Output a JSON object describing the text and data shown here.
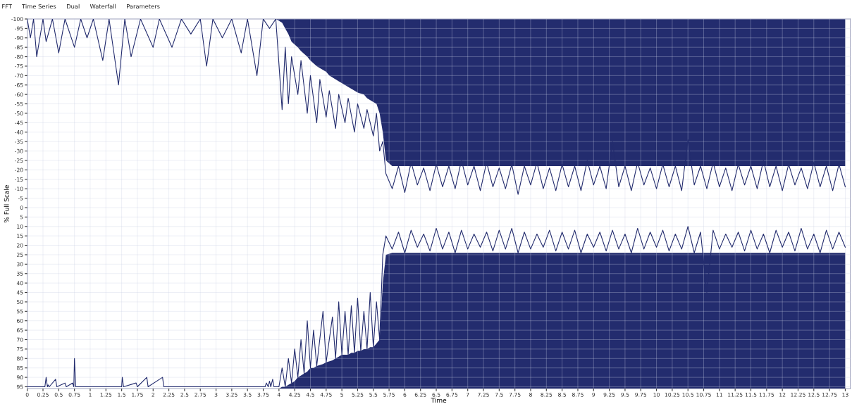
{
  "chart_data": {
    "type": "line",
    "xlabel": "Time",
    "ylabel": "% Full Scale",
    "annotations": [
      "FFT",
      "Time Series",
      "Dual",
      "Waterfall",
      "Parameters"
    ],
    "xlim": [
      0,
      13.08
    ],
    "ylim": [
      96,
      -100
    ],
    "xticks": [
      0,
      0.25,
      0.5,
      0.75,
      1,
      1.25,
      1.5,
      1.75,
      2,
      2.25,
      2.5,
      2.75,
      3,
      3.25,
      3.5,
      3.75,
      4,
      4.25,
      4.5,
      4.75,
      5,
      5.25,
      5.5,
      5.75,
      6,
      6.25,
      6.5,
      6.75,
      7,
      7.25,
      7.5,
      7.75,
      8,
      8.25,
      8.5,
      8.75,
      9,
      9.25,
      9.5,
      9.75,
      10,
      10.25,
      10.5,
      10.75,
      11,
      11.25,
      11.5,
      11.75,
      12,
      12.25,
      12.5,
      12.75,
      13
    ],
    "yticks": [
      -100,
      -95,
      -90,
      -85,
      -80,
      -75,
      -70,
      -65,
      -60,
      -55,
      -50,
      -45,
      -40,
      -35,
      -30,
      -25,
      -20,
      -15,
      -10,
      -5,
      0,
      5,
      10,
      15,
      20,
      25,
      30,
      35,
      40,
      45,
      50,
      55,
      60,
      65,
      70,
      75,
      80,
      85,
      90,
      95
    ],
    "grid": true,
    "marker": "none",
    "line_style": "solid",
    "series": [
      {
        "color": "#232c6e",
        "x": [
          0,
          0.05,
          0.1,
          0.15,
          0.25,
          0.3,
          0.4,
          0.5,
          0.6,
          0.75,
          0.85,
          0.95,
          1.05,
          1.2,
          1.3,
          1.45,
          1.55,
          1.65,
          1.8,
          2.0,
          2.1,
          2.3,
          2.45,
          2.6,
          2.75,
          2.85,
          2.95,
          3.1,
          3.25,
          3.4,
          3.5,
          3.65,
          3.75,
          3.85,
          3.95,
          4.05,
          4.1,
          4.15,
          4.2,
          4.3,
          4.35,
          4.45,
          4.5,
          4.6,
          4.65,
          4.75,
          4.8,
          4.9,
          4.95,
          5.05,
          5.1,
          5.2,
          5.25,
          5.35,
          5.4,
          5.5,
          5.55,
          5.6,
          5.65,
          5.7,
          5.8,
          5.9,
          6.0,
          6.1,
          6.2,
          6.3,
          6.4,
          6.5,
          6.6,
          6.7,
          6.8,
          6.9,
          7.0,
          7.1,
          7.2,
          7.3,
          7.4,
          7.5,
          7.6,
          7.7,
          7.8,
          7.9,
          8.0,
          8.1,
          8.2,
          8.3,
          8.4,
          8.5,
          8.6,
          8.7,
          8.8,
          8.9,
          9.0,
          9.1,
          9.2,
          9.3,
          9.4,
          9.5,
          9.6,
          9.7,
          9.8,
          9.9,
          10.0,
          10.1,
          10.2,
          10.3,
          10.4,
          10.5,
          10.6,
          10.7,
          10.8,
          10.9,
          11.0,
          11.1,
          11.2,
          11.3,
          11.4,
          11.5,
          11.6,
          11.7,
          11.8,
          11.9,
          12.0,
          12.1,
          12.2,
          12.3,
          12.4,
          12.5,
          12.6,
          12.7,
          12.8,
          12.9,
          13.0
        ],
        "values": [
          -100,
          -90,
          -100,
          -80,
          -100,
          -88,
          -100,
          -82,
          -100,
          -85,
          -100,
          -90,
          -100,
          -78,
          -100,
          -65,
          -100,
          -80,
          -100,
          -85,
          -100,
          -85,
          -100,
          -92,
          -100,
          -75,
          -100,
          -90,
          -100,
          -82,
          -100,
          -70,
          -100,
          -95,
          -100,
          -52,
          -85,
          -55,
          -80,
          -60,
          -78,
          -50,
          -70,
          -45,
          -68,
          -48,
          -62,
          -42,
          -60,
          -45,
          -58,
          -40,
          -55,
          -42,
          -52,
          -38,
          -50,
          -30,
          -35,
          -18,
          -10,
          -22,
          -8,
          -24,
          -12,
          -21,
          -9,
          -23,
          -11,
          -22,
          -10,
          -25,
          -12,
          -22,
          -9,
          -24,
          -11,
          -21,
          -10,
          -23,
          -7,
          -22,
          -12,
          -24,
          -10,
          -21,
          -9,
          -23,
          -11,
          -22,
          -9,
          -25,
          -12,
          -22,
          -10,
          -35,
          -11,
          -22,
          -9,
          -24,
          -12,
          -21,
          -10,
          -23,
          -11,
          -22,
          -9,
          -36,
          -12,
          -22,
          -10,
          -24,
          -11,
          -21,
          -9,
          -23,
          -12,
          -22,
          -10,
          -25,
          -11,
          -22,
          -9,
          -23,
          -12,
          -21,
          -10,
          -24,
          -11,
          -22,
          -9,
          -23,
          -11
        ],
        "lower": [
          -100,
          -100,
          -100,
          -100,
          -100,
          -100,
          -100,
          -100,
          -100,
          -100,
          -100,
          -100,
          -100,
          -100,
          -100,
          -100,
          -100,
          -100,
          -100,
          -100,
          -100,
          -100,
          -100,
          -100,
          -100,
          -100,
          -100,
          -100,
          -100,
          -100,
          -100,
          -100,
          -100,
          -100,
          -100,
          -100,
          -100,
          -100,
          -100,
          -100,
          -100,
          -100,
          -100,
          -100,
          -100,
          -100,
          -100,
          -100,
          -100,
          -100,
          -100,
          -100,
          -100,
          -100,
          -100,
          -100,
          -100,
          -100,
          -100,
          -100,
          -100,
          -100,
          -100,
          -100,
          -100,
          -100,
          -100,
          -100,
          -100,
          -100,
          -100,
          -100,
          -100,
          -100,
          -100,
          -100,
          -100,
          -100,
          -100,
          -100,
          -100,
          -100,
          -100,
          -100,
          -100,
          -100,
          -100,
          -100,
          -100,
          -100,
          -100,
          -100,
          -100,
          -100,
          -100,
          -100,
          -100,
          -100,
          -100,
          -100,
          -100,
          -100,
          -100,
          -100,
          -100,
          -100,
          -100,
          -100,
          -100,
          -100,
          -100,
          -100,
          -100,
          -100,
          -100,
          -100,
          -100,
          -100,
          -100,
          -100,
          -100,
          -100,
          -100,
          -100,
          -100,
          -100,
          -100,
          -100,
          -100,
          -100,
          -100,
          -100,
          -100
        ],
        "upper": [
          -100,
          -100,
          -100,
          -100,
          -100,
          -100,
          -100,
          -100,
          -100,
          -100,
          -100,
          -100,
          -100,
          -100,
          -100,
          -100,
          -100,
          -100,
          -100,
          -100,
          -100,
          -100,
          -100,
          -100,
          -100,
          -100,
          -100,
          -100,
          -100,
          -100,
          -100,
          -100,
          -100,
          -100,
          -100,
          -98,
          -95,
          -92,
          -88,
          -85,
          -83,
          -80,
          -78,
          -75,
          -74,
          -72,
          -70,
          -68,
          -67,
          -65,
          -64,
          -62,
          -61,
          -60,
          -58,
          -56,
          -55,
          -50,
          -40,
          -25,
          -22,
          -22,
          -22,
          -22,
          -22,
          -22,
          -22,
          -22,
          -22,
          -22,
          -22,
          -22,
          -22,
          -22,
          -22,
          -22,
          -22,
          -22,
          -22,
          -22,
          -22,
          -22,
          -22,
          -22,
          -22,
          -22,
          -22,
          -22,
          -22,
          -22,
          -22,
          -22,
          -22,
          -22,
          -22,
          -22,
          -22,
          -22,
          -22,
          -22,
          -22,
          -22,
          -22,
          -22,
          -22,
          -22,
          -22,
          -22,
          -22,
          -22,
          -22,
          -22,
          -22,
          -22,
          -22,
          -22,
          -22,
          -22,
          -22,
          -22,
          -22,
          -22,
          -22,
          -22,
          -22,
          -22,
          -22,
          -22,
          -22,
          -22,
          -22,
          -22,
          -22
        ]
      },
      {
        "color": "#232c6e",
        "x": [
          0,
          0.28,
          0.3,
          0.32,
          0.33,
          0.35,
          0.45,
          0.47,
          0.6,
          0.62,
          0.72,
          0.74,
          0.75,
          0.77,
          1.5,
          1.51,
          1.53,
          1.73,
          1.75,
          1.9,
          1.92,
          2.15,
          2.17,
          3.78,
          3.8,
          3.83,
          3.85,
          3.87,
          3.9,
          3.92,
          4.0,
          4.05,
          4.1,
          4.15,
          4.2,
          4.25,
          4.3,
          4.35,
          4.4,
          4.45,
          4.5,
          4.55,
          4.6,
          4.7,
          4.75,
          4.85,
          4.9,
          4.95,
          5.0,
          5.05,
          5.1,
          5.15,
          5.2,
          5.25,
          5.3,
          5.35,
          5.4,
          5.45,
          5.5,
          5.55,
          5.6,
          5.65,
          5.7,
          5.8,
          5.9,
          6.0,
          6.1,
          6.2,
          6.3,
          6.4,
          6.5,
          6.6,
          6.7,
          6.8,
          6.9,
          7.0,
          7.1,
          7.2,
          7.3,
          7.4,
          7.5,
          7.6,
          7.7,
          7.8,
          7.9,
          8.0,
          8.1,
          8.2,
          8.3,
          8.4,
          8.5,
          8.6,
          8.7,
          8.8,
          8.9,
          9.0,
          9.1,
          9.2,
          9.3,
          9.4,
          9.5,
          9.6,
          9.7,
          9.8,
          9.9,
          10.0,
          10.1,
          10.2,
          10.3,
          10.4,
          10.5,
          10.6,
          10.7,
          10.8,
          10.9,
          11.0,
          11.1,
          11.2,
          11.3,
          11.4,
          11.5,
          11.6,
          11.7,
          11.8,
          11.9,
          12.0,
          12.1,
          12.2,
          12.3,
          12.4,
          12.5,
          12.6,
          12.7,
          12.8,
          12.9,
          13.0
        ],
        "values": [
          95,
          95,
          90,
          95,
          94,
          95,
          91,
          95,
          93,
          95,
          93,
          95,
          80,
          95,
          95,
          90,
          95,
          93,
          95,
          90,
          95,
          90,
          95,
          95,
          93,
          95,
          92,
          95,
          91,
          95,
          95,
          85,
          95,
          80,
          93,
          75,
          90,
          70,
          88,
          60,
          85,
          65,
          84,
          55,
          82,
          58,
          80,
          50,
          78,
          55,
          78,
          52,
          77,
          48,
          76,
          55,
          75,
          45,
          74,
          50,
          70,
          25,
          15,
          22,
          13,
          24,
          12,
          21,
          14,
          23,
          11,
          22,
          13,
          24,
          12,
          22,
          14,
          21,
          13,
          23,
          12,
          22,
          11,
          24,
          13,
          22,
          14,
          21,
          12,
          23,
          13,
          22,
          12,
          24,
          14,
          21,
          13,
          23,
          12,
          22,
          14,
          24,
          11,
          22,
          13,
          21,
          12,
          23,
          14,
          22,
          10,
          24,
          13,
          45,
          12,
          22,
          14,
          21,
          13,
          23,
          12,
          22,
          14,
          24,
          12,
          21,
          13,
          23,
          11,
          22,
          14,
          24,
          12,
          22,
          13,
          21
        ],
        "lower": [
          96,
          96,
          96,
          96,
          96,
          96,
          96,
          96,
          96,
          96,
          96,
          96,
          96,
          96,
          96,
          96,
          96,
          96,
          96,
          96,
          96,
          96,
          96,
          96,
          96,
          96,
          96,
          96,
          96,
          96,
          96,
          95,
          95,
          94,
          93,
          92,
          90,
          89,
          88,
          87,
          85,
          85,
          84,
          83,
          82,
          81,
          80,
          79,
          78,
          78,
          78,
          77,
          77,
          76,
          76,
          75,
          75,
          74,
          74,
          72,
          70,
          40,
          25,
          24,
          24,
          24,
          24,
          24,
          24,
          24,
          24,
          24,
          24,
          24,
          24,
          24,
          24,
          24,
          24,
          24,
          24,
          24,
          24,
          24,
          24,
          24,
          24,
          24,
          24,
          24,
          24,
          24,
          24,
          24,
          24,
          24,
          24,
          24,
          24,
          24,
          24,
          24,
          24,
          24,
          24,
          24,
          24,
          24,
          24,
          24,
          24,
          24,
          24,
          24,
          24,
          24,
          24,
          24,
          24,
          24,
          24,
          24,
          24,
          24,
          24,
          24,
          24,
          24,
          24,
          24,
          24,
          24,
          24,
          24,
          24,
          24
        ],
        "upper": [
          96,
          96,
          96,
          96,
          96,
          96,
          96,
          96,
          96,
          96,
          96,
          96,
          96,
          96,
          96,
          96,
          96,
          96,
          96,
          96,
          96,
          96,
          96,
          96,
          96,
          96,
          96,
          96,
          96,
          96,
          96,
          96,
          96,
          96,
          96,
          96,
          96,
          96,
          96,
          96,
          96,
          96,
          96,
          96,
          96,
          96,
          96,
          96,
          96,
          96,
          96,
          96,
          96,
          96,
          96,
          96,
          96,
          96,
          96,
          96,
          96,
          96,
          96,
          96,
          96,
          96,
          96,
          96,
          96,
          96,
          96,
          96,
          96,
          96,
          96,
          96,
          96,
          96,
          96,
          96,
          96,
          96,
          96,
          96,
          96,
          96,
          96,
          96,
          96,
          96,
          96,
          96,
          96,
          96,
          96,
          96,
          96,
          96,
          96,
          96,
          96,
          96,
          96,
          96,
          96,
          96,
          96,
          96,
          96,
          96,
          96,
          96,
          96,
          96,
          96,
          96,
          96,
          96,
          96,
          96,
          96,
          96,
          96,
          96,
          96,
          96,
          96,
          96,
          96,
          96,
          96,
          96,
          96,
          96,
          96,
          96
        ]
      }
    ]
  }
}
